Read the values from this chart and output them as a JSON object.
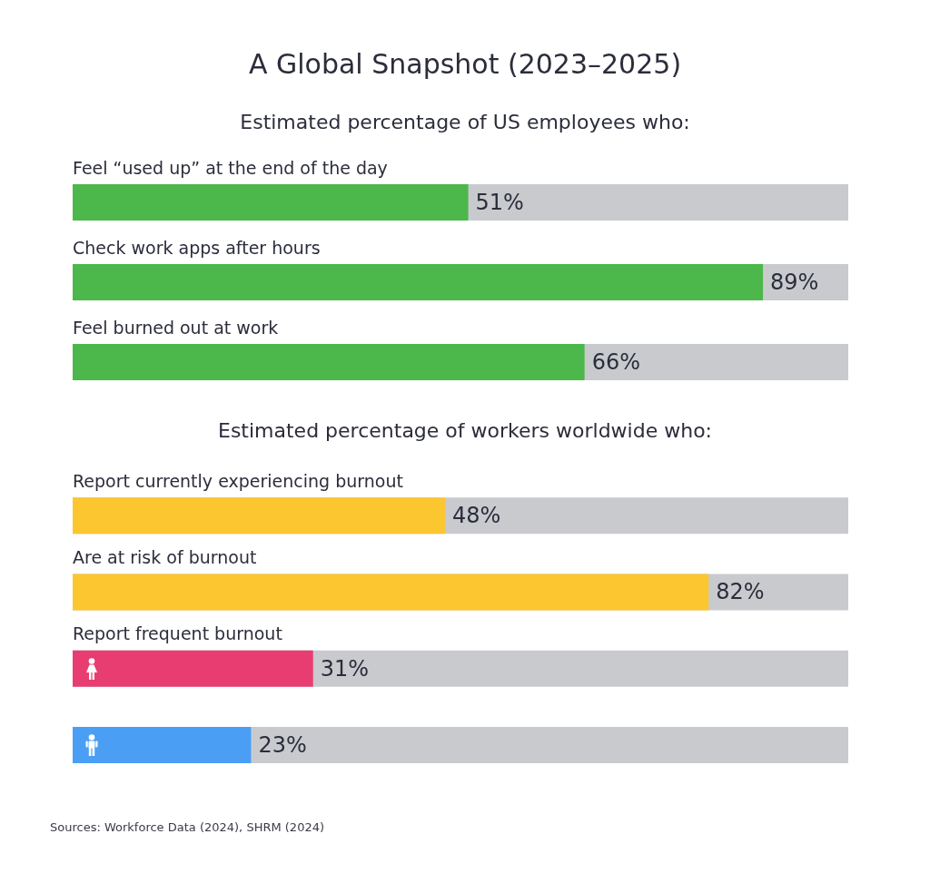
{
  "chart_data": [
    {
      "type": "bar",
      "orientation": "horizontal",
      "title": "A Global Snapshot (2023–2025)",
      "subtitle": "Estimated percentage of US employees who:",
      "categories": [
        "Feel “used up” at the end of the day",
        "Check work apps after hours",
        "Feel burned out at work"
      ],
      "values": [
        51,
        89,
        66
      ],
      "value_labels": [
        "51%",
        "89%",
        "66%"
      ],
      "color": "#4cb74a",
      "xlim": [
        0,
        100
      ],
      "tick_labels": "y",
      "grid": false
    },
    {
      "type": "bar",
      "orientation": "horizontal",
      "subtitle": "Estimated percentage of workers worldwide who:",
      "categories": [
        "Report currently experiencing burnout",
        "Are at risk of burnout",
        "Report frequent burnout",
        null
      ],
      "values": [
        48,
        82,
        31,
        23
      ],
      "value_labels": [
        "48%",
        "82%",
        "31%",
        "23%"
      ],
      "colors": [
        "#fcc631",
        "#fcc631",
        "#e83d70",
        "#4a9ff5"
      ],
      "xlim": [
        0,
        100
      ],
      "tick_labels": "y",
      "grid": false,
      "annotations": [
        "Sources: Workforce Data (2024), SHRM (2024)"
      ]
    }
  ]
}
